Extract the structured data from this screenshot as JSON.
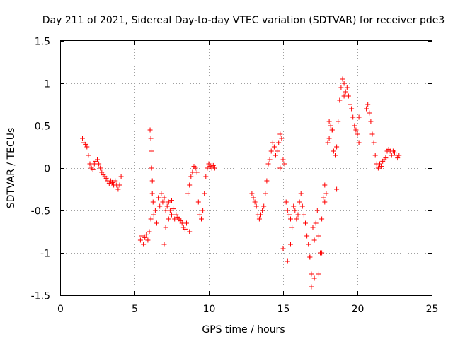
{
  "chart_data": {
    "type": "scatter",
    "title": "Day 211 of 2021, Sidereal Day-to-day VTEC variation (SDTVAR) for receiver pde3",
    "xlabel": "GPS time / hours",
    "ylabel": "SDTVAR / TECUs",
    "xlim": [
      0,
      25
    ],
    "ylim": [
      -1.5,
      1.5
    ],
    "xticks": [
      0,
      5,
      10,
      15,
      20,
      25
    ],
    "xtick_labels": [
      "0",
      "5",
      "10",
      "15",
      "20",
      "25"
    ],
    "yticks": [
      -1.5,
      -1,
      -0.5,
      0,
      0.5,
      1,
      1.5
    ],
    "ytick_labels": [
      "-1.5",
      "-1",
      "-0.5",
      "0",
      "0.5",
      "1",
      "1.5"
    ],
    "grid": true,
    "marker": "plus",
    "color": "#ff0000",
    "series": [
      {
        "name": "SDTVAR",
        "x": [
          1.5,
          1.6,
          1.7,
          1.8,
          1.9,
          2.0,
          2.1,
          2.2,
          2.3,
          2.4,
          2.5,
          2.6,
          2.7,
          2.8,
          2.9,
          3.0,
          3.1,
          3.2,
          3.3,
          3.4,
          3.5,
          3.6,
          3.7,
          3.8,
          3.9,
          4.0,
          4.1,
          5.4,
          5.5,
          5.6,
          5.7,
          5.8,
          5.9,
          6.0,
          6.1,
          6.2,
          6.3,
          6.4,
          6.5,
          6.6,
          6.7,
          6.8,
          6.9,
          7.0,
          7.1,
          7.2,
          7.3,
          7.4,
          7.5,
          7.6,
          7.7,
          7.8,
          7.9,
          8.0,
          8.1,
          8.2,
          8.3,
          8.4,
          8.5,
          8.6,
          8.7,
          8.8,
          8.9,
          9.0,
          9.1,
          9.2,
          9.3,
          9.4,
          9.5,
          9.6,
          9.7,
          9.8,
          9.9,
          10.0,
          10.1,
          10.2,
          10.3,
          10.4,
          12.9,
          13.0,
          13.1,
          13.2,
          13.3,
          13.4,
          13.5,
          13.6,
          13.7,
          13.8,
          13.9,
          14.0,
          14.1,
          14.2,
          14.3,
          14.4,
          14.5,
          14.6,
          14.7,
          14.8,
          14.9,
          15.0,
          15.1,
          15.2,
          15.3,
          15.4,
          15.5,
          15.6,
          15.7,
          15.8,
          15.9,
          16.0,
          16.1,
          16.2,
          16.3,
          16.4,
          16.5,
          16.6,
          16.7,
          16.8,
          16.9,
          17.0,
          17.1,
          17.2,
          17.3,
          17.4,
          17.5,
          17.6,
          17.7,
          17.8,
          17.9,
          18.0,
          18.1,
          18.2,
          18.3,
          18.4,
          18.5,
          18.6,
          18.7,
          18.8,
          18.9,
          19.0,
          19.1,
          19.2,
          19.3,
          19.4,
          19.5,
          19.6,
          19.7,
          19.8,
          19.9,
          20.0,
          20.1,
          20.6,
          20.7,
          20.8,
          20.9,
          21.0,
          21.1,
          21.2,
          21.3,
          21.4,
          21.5,
          21.6,
          21.7,
          21.8,
          21.9,
          22.0,
          22.1,
          22.2,
          22.3,
          22.4,
          22.5,
          22.6,
          22.7,
          22.8,
          6.05,
          6.1,
          6.12,
          6.15,
          6.2,
          6.25,
          7.0,
          7.1,
          7.3,
          7.5,
          8.7,
          14.8,
          15.0,
          15.3,
          15.5,
          16.8,
          16.9,
          17.1,
          17.4,
          17.6,
          17.8,
          18.1,
          18.3,
          18.6,
          19.1,
          20.1
        ],
        "y": [
          0.35,
          0.3,
          0.28,
          0.25,
          0.15,
          0.05,
          0.0,
          -0.02,
          0.05,
          0.08,
          0.1,
          0.05,
          0.0,
          -0.05,
          -0.08,
          -0.1,
          -0.12,
          -0.15,
          -0.18,
          -0.15,
          -0.17,
          -0.2,
          -0.15,
          -0.2,
          -0.25,
          -0.2,
          -0.1,
          -0.85,
          -0.8,
          -0.9,
          -0.82,
          -0.78,
          -0.85,
          -0.75,
          -0.6,
          -0.3,
          -0.55,
          -0.5,
          -0.65,
          -0.35,
          -0.45,
          -0.3,
          -0.4,
          -0.35,
          -0.5,
          -0.45,
          -0.4,
          -0.5,
          -0.38,
          -0.48,
          -0.6,
          -0.55,
          -0.58,
          -0.6,
          -0.62,
          -0.65,
          -0.7,
          -0.72,
          -0.65,
          -0.3,
          -0.2,
          -0.1,
          -0.05,
          0.02,
          0.0,
          -0.05,
          -0.4,
          -0.55,
          -0.6,
          -0.5,
          -0.3,
          -0.1,
          0.0,
          0.05,
          0.02,
          0.0,
          0.03,
          0.0,
          -0.3,
          -0.35,
          -0.4,
          -0.45,
          -0.55,
          -0.6,
          -0.55,
          -0.5,
          -0.45,
          -0.3,
          -0.15,
          0.05,
          0.1,
          0.2,
          0.3,
          0.25,
          0.15,
          0.2,
          0.3,
          0.4,
          0.35,
          0.1,
          0.05,
          -0.4,
          -0.5,
          -0.55,
          -0.6,
          -0.7,
          -0.45,
          -0.5,
          -0.6,
          -0.55,
          -0.4,
          -0.3,
          -0.45,
          -0.55,
          -0.65,
          -0.8,
          -0.9,
          -1.05,
          -1.25,
          -0.7,
          -0.85,
          -0.65,
          -0.5,
          -0.8,
          -1.0,
          -0.6,
          -0.35,
          -0.2,
          -0.3,
          0.3,
          0.35,
          0.5,
          0.45,
          0.2,
          0.15,
          0.25,
          0.55,
          0.8,
          0.95,
          1.05,
          1.0,
          0.9,
          0.95,
          0.85,
          0.75,
          0.7,
          0.6,
          0.5,
          0.45,
          0.4,
          0.3,
          0.7,
          0.75,
          0.65,
          0.55,
          0.4,
          0.3,
          0.15,
          0.05,
          0.0,
          0.05,
          0.02,
          0.08,
          0.1,
          0.12,
          0.2,
          0.22,
          0.2,
          0.15,
          0.2,
          0.18,
          0.15,
          0.12,
          0.15,
          0.45,
          0.35,
          0.2,
          0.0,
          -0.15,
          -0.4,
          -0.9,
          -0.7,
          -0.6,
          -0.55,
          -0.75,
          0.0,
          -0.95,
          -1.1,
          -0.9,
          -1.05,
          -1.4,
          -1.3,
          -1.25,
          -1.0,
          -0.4,
          0.55,
          0.45,
          -0.25,
          0.85,
          0.6
        ]
      }
    ]
  }
}
